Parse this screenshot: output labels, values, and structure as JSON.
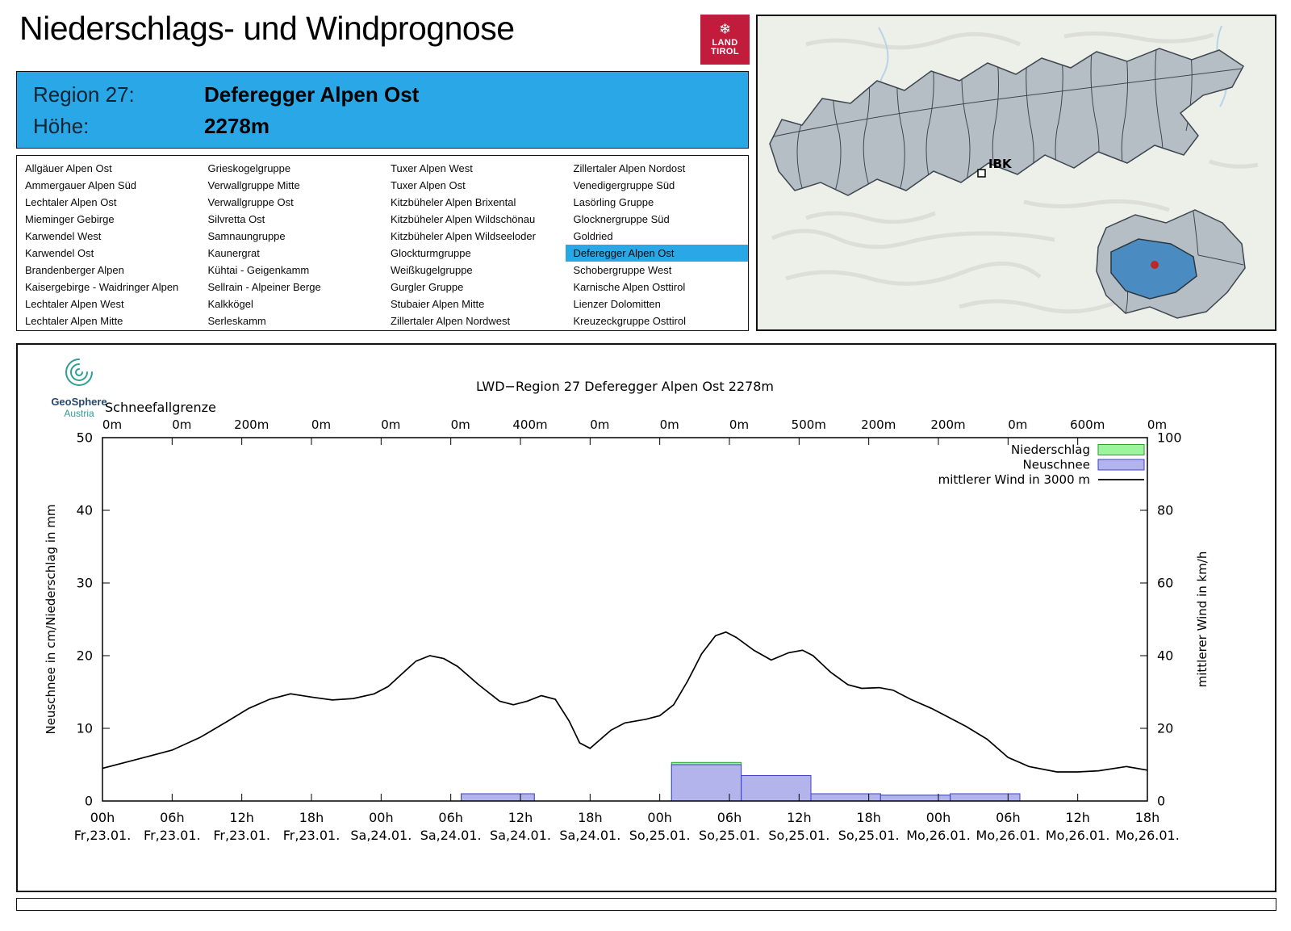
{
  "header": {
    "title": "Niederschlags- und Windprognose",
    "logo": {
      "line1": "LAND",
      "line2": "TIROL",
      "snowflake_icon": "❄",
      "bg_color": "#c21c3c"
    }
  },
  "region_header": {
    "region_label": "Region 27:",
    "region_name": "Deferegger Alpen Ost",
    "altitude_label": "Höhe:",
    "altitude_value": "2278m",
    "accent_color": "#2aa7e6"
  },
  "region_list": {
    "selected": "Deferegger Alpen Ost",
    "columns": [
      [
        "Allgäuer Alpen Ost",
        "Ammergauer Alpen Süd",
        "Lechtaler Alpen Ost",
        "Mieminger Gebirge",
        "Karwendel West",
        "Karwendel Ost",
        "Brandenberger Alpen",
        "Kaisergebirge - Waidringer Alpen",
        "Lechtaler Alpen West",
        "Lechtaler Alpen Mitte"
      ],
      [
        "Grieskogelgruppe",
        "Verwallgruppe Mitte",
        "Verwallgruppe Ost",
        "Silvretta Ost",
        "Samnaungruppe",
        "Kaunergrat",
        "Kühtai - Geigenkamm",
        "Sellrain - Alpeiner Berge",
        "Kalkkögel",
        "Serleskamm"
      ],
      [
        "Tuxer Alpen West",
        "Tuxer Alpen Ost",
        "Kitzbüheler Alpen Brixental",
        "Kitzbüheler Alpen Wildschönau",
        "Kitzbüheler Alpen Wildseeloder",
        "Glockturmgruppe",
        "Weißkugelgruppe",
        "Gurgler Gruppe",
        "Stubaier Alpen Mitte",
        "Zillertaler Alpen Nordwest"
      ],
      [
        "Zillertaler Alpen Nordost",
        "Venedigergruppe Süd",
        "Lasörling Gruppe",
        "Glocknergruppe Süd",
        "Goldried",
        "Deferegger Alpen Ost",
        "Schobergruppe West",
        "Karnische Alpen Osttirol",
        "Lienzer Dolomitten",
        "Kreuzeckgruppe Osttirol"
      ]
    ]
  },
  "map": {
    "ibk_label": "IBK",
    "highlighted_region": "Deferegger Alpen Ost",
    "highlight_color": "#4a8cc2",
    "marker_color": "#c02626"
  },
  "geosphere": {
    "name": "GeoSphere",
    "sub": "Austria"
  },
  "chart_data": {
    "type": "composite",
    "title": "LWD−Region 27 Deferegger Alpen Ost 2278m",
    "schneefallgrenze": {
      "label": "Schneefallgrenze",
      "values": [
        "0m",
        "0m",
        "200m",
        "0m",
        "0m",
        "0m",
        "400m",
        "0m",
        "0m",
        "0m",
        "500m",
        "200m",
        "200m",
        "0m",
        "600m",
        "0m"
      ]
    },
    "x_tick_interval_hours": 6,
    "x_ticks": [
      {
        "hour": "00h",
        "date": "Fr,23.01."
      },
      {
        "hour": "06h",
        "date": "Fr,23.01."
      },
      {
        "hour": "12h",
        "date": "Fr,23.01."
      },
      {
        "hour": "18h",
        "date": "Fr,23.01."
      },
      {
        "hour": "00h",
        "date": "Sa,24.01."
      },
      {
        "hour": "06h",
        "date": "Sa,24.01."
      },
      {
        "hour": "12h",
        "date": "Sa,24.01."
      },
      {
        "hour": "18h",
        "date": "Sa,24.01."
      },
      {
        "hour": "00h",
        "date": "So,25.01."
      },
      {
        "hour": "06h",
        "date": "So,25.01."
      },
      {
        "hour": "12h",
        "date": "So,25.01."
      },
      {
        "hour": "18h",
        "date": "So,25.01."
      },
      {
        "hour": "00h",
        "date": "Mo,26.01."
      },
      {
        "hour": "06h",
        "date": "Mo,26.01."
      },
      {
        "hour": "12h",
        "date": "Mo,26.01."
      },
      {
        "hour": "18h",
        "date": "Mo,26.01."
      }
    ],
    "left_axis": {
      "label": "Neuschnee in cm/Niederschlag in mm",
      "range": [
        0,
        50
      ],
      "ticks": [
        0,
        10,
        20,
        30,
        40,
        50
      ]
    },
    "right_axis": {
      "label": "mittlerer Wind in km/h",
      "range": [
        0,
        100
      ],
      "ticks": [
        0,
        20,
        40,
        60,
        80,
        100
      ]
    },
    "legend": [
      {
        "label": "Niederschlag",
        "type": "box",
        "fill": "#9cf49c",
        "border": "#2e9e2e"
      },
      {
        "label": "Neuschnee",
        "type": "box",
        "fill": "#b4b4ec",
        "border": "#4040c8"
      },
      {
        "label": "mittlerer Wind in 3000 m",
        "type": "line",
        "color": "#000000"
      }
    ],
    "x_units_note": "bar from/to and line x are tick indices, 1 tick = 6h",
    "series": [
      {
        "name": "Niederschlag",
        "type": "bar",
        "unit": "mm",
        "axis": "left",
        "fill": "#9cf49c",
        "border": "#2e9e2e",
        "bars": [
          {
            "from": 5.15,
            "to": 6.2,
            "value": 1.0
          },
          {
            "from": 8.17,
            "to": 9.17,
            "value": 5.3
          },
          {
            "from": 9.17,
            "to": 10.17,
            "value": 3.5
          },
          {
            "from": 10.17,
            "to": 11.17,
            "value": 1.0
          },
          {
            "from": 11.17,
            "to": 12.17,
            "value": 0.8
          },
          {
            "from": 12.17,
            "to": 13.17,
            "value": 1.0
          }
        ]
      },
      {
        "name": "Neuschnee",
        "type": "bar",
        "unit": "cm",
        "axis": "left",
        "fill": "#b4b4ec",
        "border": "#4040c8",
        "bars": [
          {
            "from": 5.15,
            "to": 6.2,
            "value": 1.0
          },
          {
            "from": 8.17,
            "to": 9.17,
            "value": 5.0
          },
          {
            "from": 9.17,
            "to": 10.17,
            "value": 3.5
          },
          {
            "from": 10.17,
            "to": 11.17,
            "value": 1.0
          },
          {
            "from": 11.17,
            "to": 12.17,
            "value": 0.8
          },
          {
            "from": 12.17,
            "to": 13.17,
            "value": 1.0
          }
        ]
      },
      {
        "name": "mittlerer Wind in 3000 m",
        "type": "line",
        "unit": "km/h",
        "axis": "right",
        "color": "#000000",
        "points": [
          [
            0,
            9
          ],
          [
            0.3,
            10.5
          ],
          [
            0.7,
            12.5
          ],
          [
            1,
            14
          ],
          [
            1.4,
            17.5
          ],
          [
            1.8,
            22
          ],
          [
            2.1,
            25.5
          ],
          [
            2.4,
            28
          ],
          [
            2.7,
            29.5
          ],
          [
            3,
            28.6
          ],
          [
            3.3,
            27.8
          ],
          [
            3.6,
            28.2
          ],
          [
            3.9,
            29.5
          ],
          [
            4.1,
            31.5
          ],
          [
            4.3,
            35
          ],
          [
            4.5,
            38.5
          ],
          [
            4.7,
            40
          ],
          [
            4.9,
            39.2
          ],
          [
            5.1,
            37
          ],
          [
            5.4,
            32
          ],
          [
            5.7,
            27.5
          ],
          [
            5.9,
            26.5
          ],
          [
            6.1,
            27.5
          ],
          [
            6.3,
            29
          ],
          [
            6.5,
            28
          ],
          [
            6.7,
            22
          ],
          [
            6.85,
            16
          ],
          [
            7,
            14.5
          ],
          [
            7.15,
            17
          ],
          [
            7.3,
            19.5
          ],
          [
            7.5,
            21.5
          ],
          [
            7.8,
            22.5
          ],
          [
            8,
            23.5
          ],
          [
            8.2,
            26.5
          ],
          [
            8.4,
            33
          ],
          [
            8.6,
            40.5
          ],
          [
            8.8,
            45.5
          ],
          [
            8.95,
            46.5
          ],
          [
            9.1,
            45
          ],
          [
            9.35,
            41.5
          ],
          [
            9.6,
            38.8
          ],
          [
            9.85,
            40.8
          ],
          [
            10.05,
            41.5
          ],
          [
            10.2,
            40
          ],
          [
            10.45,
            35.5
          ],
          [
            10.7,
            32
          ],
          [
            10.9,
            31
          ],
          [
            11.15,
            31.2
          ],
          [
            11.35,
            30.5
          ],
          [
            11.6,
            28
          ],
          [
            11.9,
            25.5
          ],
          [
            12.15,
            23
          ],
          [
            12.4,
            20.5
          ],
          [
            12.7,
            17
          ],
          [
            13,
            12
          ],
          [
            13.3,
            9.5
          ],
          [
            13.7,
            8
          ],
          [
            14,
            8
          ],
          [
            14.3,
            8.3
          ],
          [
            14.7,
            9.5
          ],
          [
            15,
            8.5
          ]
        ]
      }
    ]
  }
}
